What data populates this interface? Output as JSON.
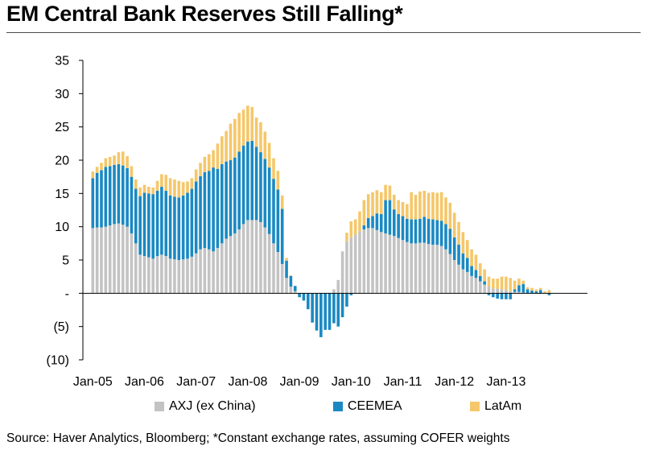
{
  "title": "EM Central Bank Reserves Still Falling*",
  "source": "Source: Haver Analytics, Bloomberg; *Constant exchange rates, assuming COFER weights",
  "colors": {
    "AXJ": "#c3c3c3",
    "CEEMEA": "#1a89c2",
    "LatAm": "#f5c76a"
  },
  "chart_data": {
    "type": "bar",
    "stacked": true,
    "ylim": [
      -10,
      35
    ],
    "yticks": [
      35,
      30,
      25,
      20,
      15,
      10,
      5,
      0,
      -5,
      -10
    ],
    "ytick_labels": [
      "35",
      "30",
      "25",
      "20",
      "15",
      "10",
      "5",
      "-",
      "(5)",
      "(10)"
    ],
    "xtick_labels": [
      "Jan-05",
      "Jan-06",
      "Jan-07",
      "Jan-08",
      "Jan-09",
      "Jan-10",
      "Jan-11",
      "Jan-12",
      "Jan-13"
    ],
    "x_start": "Jan-05",
    "frequency": "monthly",
    "legend": [
      {
        "key": "AXJ",
        "label": "AXJ (ex China)"
      },
      {
        "key": "CEEMEA",
        "label": "CEEMEA"
      },
      {
        "key": "LatAm",
        "label": "LatAm"
      }
    ],
    "series": [
      {
        "name": "AXJ (ex China)",
        "key": "AXJ",
        "values": [
          9.8,
          9.9,
          9.9,
          10.0,
          10.2,
          10.4,
          10.5,
          10.3,
          10.0,
          9.0,
          7.5,
          5.8,
          5.6,
          5.4,
          5.2,
          5.6,
          5.8,
          5.6,
          5.2,
          5.1,
          5.0,
          5.1,
          5.2,
          5.5,
          6.0,
          6.6,
          6.8,
          6.6,
          6.3,
          6.8,
          7.5,
          8.2,
          8.6,
          9.0,
          9.6,
          10.4,
          11.0,
          11.0,
          11.0,
          10.7,
          9.9,
          8.9,
          7.5,
          6.2,
          4.4,
          2.3,
          1.0,
          0.3,
          0.0,
          0.0,
          0.0,
          0.0,
          0.0,
          0.0,
          0.0,
          0.0,
          0.6,
          2.0,
          6.3,
          7.8,
          8.4,
          8.8,
          9.3,
          9.6,
          9.8,
          9.8,
          9.5,
          9.2,
          9.0,
          8.8,
          8.6,
          8.3,
          8.0,
          7.7,
          7.5,
          7.5,
          7.6,
          7.6,
          7.4,
          7.3,
          7.3,
          7.1,
          6.6,
          5.9,
          5.0,
          4.3,
          3.6,
          3.2,
          2.6,
          2.3,
          1.8,
          1.3,
          1.0,
          0.7,
          0.7,
          0.6,
          0.5,
          0.3,
          0.2,
          0.2,
          0.1,
          0.0,
          0.0,
          0.0,
          0.0,
          0.0,
          0.0
        ]
      },
      {
        "name": "CEEMEA",
        "key": "CEEMEA",
        "values": [
          7.5,
          8.2,
          8.6,
          9.0,
          8.9,
          8.9,
          8.9,
          8.9,
          8.8,
          8.5,
          8.2,
          8.8,
          9.5,
          9.6,
          9.7,
          9.8,
          10.2,
          9.8,
          9.5,
          9.4,
          9.4,
          9.6,
          9.9,
          10.2,
          10.8,
          11.0,
          11.4,
          11.8,
          12.6,
          11.9,
          11.9,
          11.6,
          11.4,
          11.4,
          11.7,
          11.8,
          11.8,
          11.9,
          11.0,
          10.5,
          10.3,
          10.0,
          9.7,
          9.4,
          8.3,
          2.6,
          1.6,
          0.8,
          -0.6,
          -1.1,
          -2.4,
          -4.4,
          -5.6,
          -6.6,
          -5.5,
          -5.5,
          -4.5,
          -5.0,
          -3.6,
          -2.0,
          -0.3,
          0.0,
          0.0,
          0.6,
          1.5,
          1.8,
          2.5,
          2.7,
          5.0,
          5.2,
          4.0,
          3.6,
          3.6,
          3.5,
          3.6,
          3.6,
          3.6,
          3.9,
          3.8,
          3.8,
          3.7,
          3.8,
          3.8,
          3.8,
          3.4,
          3.0,
          2.4,
          2.1,
          1.5,
          1.2,
          0.8,
          0.5,
          -0.3,
          -0.6,
          -0.8,
          -0.9,
          -0.9,
          -0.9,
          0.4,
          1.0,
          1.3,
          0.6,
          0.4,
          0.3,
          0.5,
          0.0,
          -0.3
        ]
      },
      {
        "name": "LatAm",
        "key": "LatAm",
        "values": [
          1.0,
          0.9,
          1.1,
          1.3,
          1.4,
          1.4,
          1.8,
          2.1,
          1.8,
          1.6,
          1.4,
          1.3,
          1.2,
          1.0,
          1.0,
          1.5,
          1.9,
          2.4,
          2.6,
          2.6,
          2.5,
          2.0,
          1.7,
          1.6,
          1.8,
          2.0,
          2.3,
          2.5,
          2.6,
          3.8,
          4.2,
          4.6,
          5.5,
          5.8,
          5.8,
          5.4,
          5.4,
          5.1,
          4.4,
          4.5,
          4.1,
          3.7,
          3.1,
          2.8,
          2.0,
          0.4,
          0.1,
          0.0,
          0.0,
          0.0,
          0.0,
          0.0,
          0.0,
          0.0,
          0.0,
          0.0,
          0.0,
          0.0,
          0.0,
          1.3,
          2.4,
          2.3,
          3.0,
          3.8,
          3.6,
          3.6,
          3.5,
          3.3,
          2.3,
          2.2,
          2.2,
          2.1,
          2.1,
          2.2,
          4.1,
          3.7,
          4.1,
          3.9,
          3.9,
          4.1,
          4.1,
          4.3,
          4.0,
          3.9,
          3.7,
          3.4,
          3.2,
          2.7,
          2.5,
          2.3,
          1.9,
          1.8,
          1.5,
          1.5,
          1.5,
          1.9,
          2.0,
          2.0,
          1.3,
          1.0,
          0.5,
          0.3,
          0.4,
          0.3,
          0.3,
          0.3,
          0.5
        ]
      }
    ]
  }
}
